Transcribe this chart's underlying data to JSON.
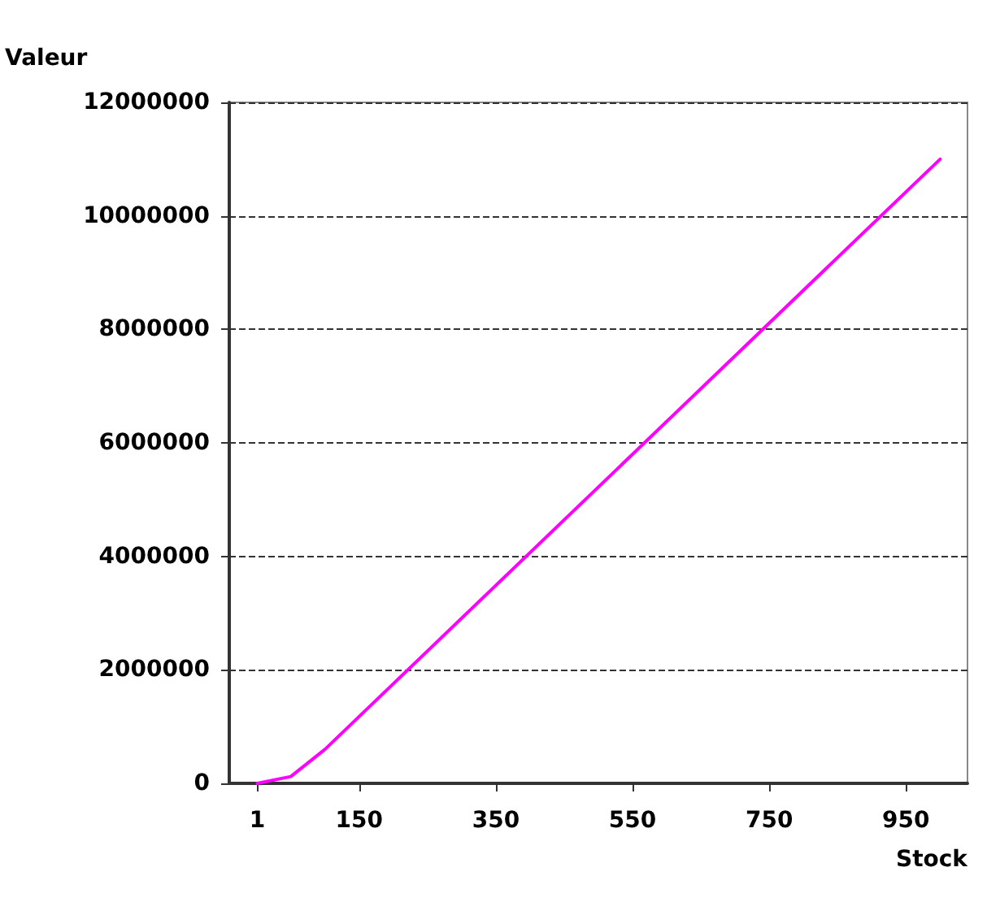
{
  "chart_data": {
    "type": "line",
    "xlabel": "Stock",
    "ylabel": "Valeur",
    "x": [
      1,
      50,
      100,
      1000
    ],
    "series": [
      {
        "color": "#ff00ff",
        "values": [
          0,
          120000,
          600000,
          11000000
        ]
      }
    ],
    "xlim": [
      -40,
      1040
    ],
    "xticks": [
      1,
      150,
      350,
      550,
      750,
      950
    ],
    "ylim": [
      0,
      12000000
    ],
    "yticks": [
      0,
      2000000,
      4000000,
      6000000,
      8000000,
      10000000,
      12000000
    ],
    "grid": "y",
    "line_style": "solid",
    "marker": "none"
  }
}
